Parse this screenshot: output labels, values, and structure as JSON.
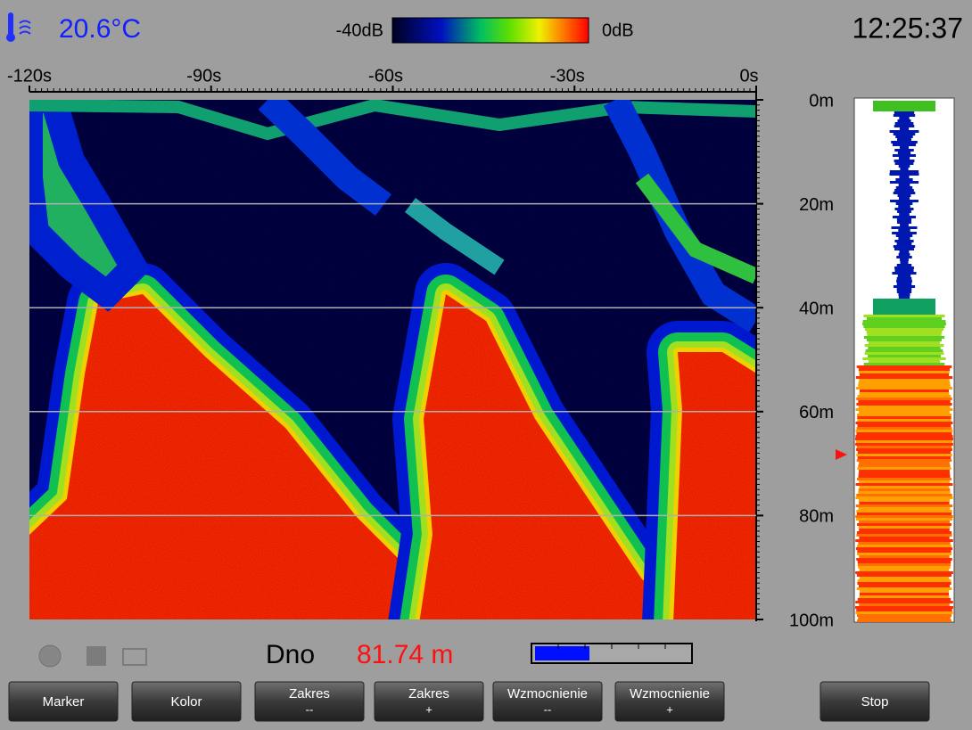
{
  "status": {
    "temperature": "20.6°C",
    "scale_min": "-40dB",
    "scale_max": "0dB",
    "clock": "12:25:37"
  },
  "time_axis": {
    "labels": [
      "-120s",
      "-90s",
      "-60s",
      "-30s",
      "0s"
    ]
  },
  "depth_axis": {
    "labels": [
      "0m",
      "20m",
      "40m",
      "60m",
      "80m",
      "100m"
    ]
  },
  "readout": {
    "label": "Dno",
    "value": "81.74 m"
  },
  "buttons": [
    {
      "label": "Marker"
    },
    {
      "label": "Kolor"
    },
    {
      "label": "Zakres",
      "sub": "--"
    },
    {
      "label": "Zakres",
      "sub": "+"
    },
    {
      "label": "Wzmocnienie",
      "sub": "--"
    },
    {
      "label": "Wzmocnienie",
      "sub": "+"
    },
    {
      "label": "Stop"
    }
  ]
}
